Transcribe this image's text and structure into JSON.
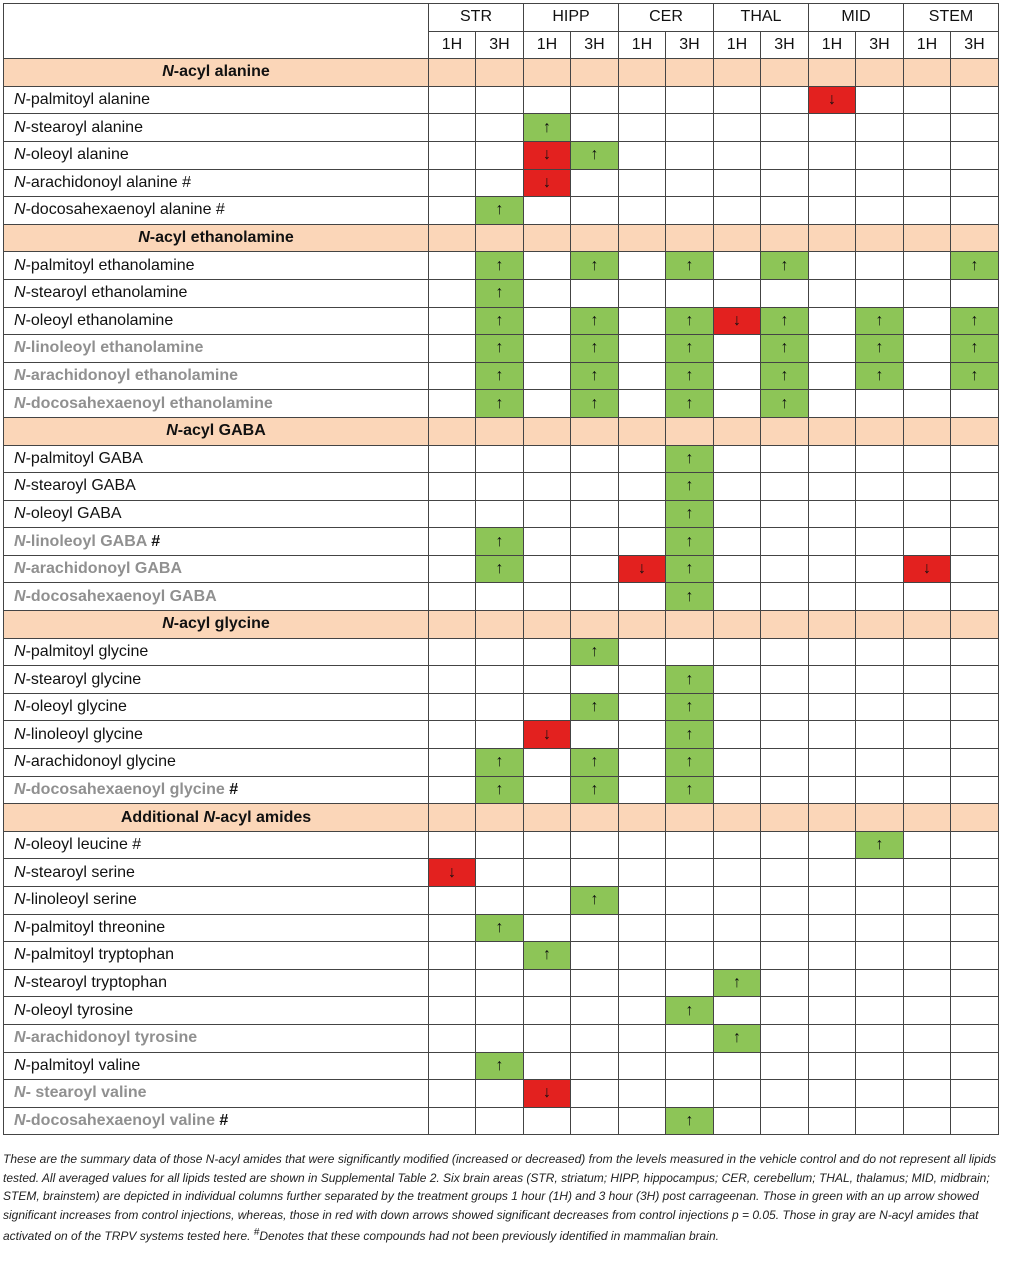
{
  "regions": [
    "STR",
    "HIPP",
    "CER",
    "THAL",
    "MID",
    "STEM"
  ],
  "timepoints": [
    "1H",
    "3H"
  ],
  "symbols": {
    "up": "↑",
    "down": "↓"
  },
  "colors": {
    "increase": "#8dc557",
    "decrease": "#e3211f",
    "group_header": "#fbd6b8",
    "gray_text": "#909090"
  },
  "groups": [
    {
      "title_italic": "N",
      "title_rest": "-acyl alanine",
      "rows": [
        {
          "name_italic": "N",
          "name_rest": "-palmitoyl alanine",
          "gray": false,
          "hash": "",
          "cells": [
            "",
            "",
            "",
            "",
            "",
            "",
            "",
            "",
            "down",
            "",
            "",
            ""
          ]
        },
        {
          "name_italic": "N",
          "name_rest": "-stearoyl alanine",
          "gray": false,
          "hash": "",
          "cells": [
            "",
            "",
            "up",
            "",
            "",
            "",
            "",
            "",
            "",
            "",
            "",
            ""
          ]
        },
        {
          "name_italic": "N",
          "name_rest": "-oleoyl alanine",
          "gray": false,
          "hash": "",
          "cells": [
            "",
            "",
            "down",
            "up",
            "",
            "",
            "",
            "",
            "",
            "",
            "",
            ""
          ]
        },
        {
          "name_italic": "N",
          "name_rest": "-arachidonoyl alanine #",
          "gray": false,
          "hash": "",
          "cells": [
            "",
            "",
            "down",
            "",
            "",
            "",
            "",
            "",
            "",
            "",
            "",
            ""
          ]
        },
        {
          "name_italic": "N",
          "name_rest": "-docosahexaenoyl alanine  #",
          "gray": false,
          "hash": "",
          "cells": [
            "",
            "up",
            "",
            "",
            "",
            "",
            "",
            "",
            "",
            "",
            "",
            ""
          ]
        }
      ]
    },
    {
      "title_italic": "N",
      "title_rest": "-acyl ethanolamine",
      "rows": [
        {
          "name_italic": "N",
          "name_rest": "-palmitoyl ethanolamine",
          "gray": false,
          "hash": "",
          "cells": [
            "",
            "up",
            "",
            "up",
            "",
            "up",
            "",
            "up",
            "",
            "",
            "",
            "up"
          ]
        },
        {
          "name_italic": "N",
          "name_rest": "-stearoyl ethanolamine",
          "gray": false,
          "hash": "",
          "cells": [
            "",
            "up",
            "",
            "",
            "",
            "",
            "",
            "",
            "",
            "",
            "",
            ""
          ]
        },
        {
          "name_italic": "N",
          "name_rest": "-oleoyl ethanolamine",
          "gray": false,
          "hash": "",
          "cells": [
            "",
            "up",
            "",
            "up",
            "",
            "up",
            "down",
            "up",
            "",
            "up",
            "",
            "up"
          ]
        },
        {
          "name_italic": "N",
          "name_rest": "-linoleoyl ethanolamine",
          "gray": true,
          "hash": "",
          "cells": [
            "",
            "up",
            "",
            "up",
            "",
            "up",
            "",
            "up",
            "",
            "up",
            "",
            "up"
          ]
        },
        {
          "name_italic": "N",
          "name_rest": "-arachidonoyl ethanolamine",
          "gray": true,
          "hash": "",
          "cells": [
            "",
            "up",
            "",
            "up",
            "",
            "up",
            "",
            "up",
            "",
            "up",
            "",
            "up"
          ]
        },
        {
          "name_italic": "N",
          "name_rest": "-docosahexaenoyl ethanolamine",
          "gray": true,
          "hash": "",
          "cells": [
            "",
            "up",
            "",
            "up",
            "",
            "up",
            "",
            "up",
            "",
            "",
            "",
            ""
          ]
        }
      ]
    },
    {
      "title_italic": "N",
      "title_rest": "-acyl GABA",
      "rows": [
        {
          "name_italic": "N",
          "name_rest": "-palmitoyl GABA",
          "gray": false,
          "hash": "",
          "cells": [
            "",
            "",
            "",
            "",
            "",
            "up",
            "",
            "",
            "",
            "",
            "",
            ""
          ]
        },
        {
          "name_italic": "N",
          "name_rest": "-stearoyl GABA",
          "gray": false,
          "hash": "",
          "cells": [
            "",
            "",
            "",
            "",
            "",
            "up",
            "",
            "",
            "",
            "",
            "",
            ""
          ]
        },
        {
          "name_italic": "N",
          "name_rest": "-oleoyl GABA",
          "gray": false,
          "hash": "",
          "cells": [
            "",
            "",
            "",
            "",
            "",
            "up",
            "",
            "",
            "",
            "",
            "",
            ""
          ]
        },
        {
          "name_italic": "N",
          "name_rest": "-linoleoyl GABA",
          "gray": true,
          "hash": " #",
          "cells": [
            "",
            "up",
            "",
            "",
            "",
            "up",
            "",
            "",
            "",
            "",
            "",
            ""
          ]
        },
        {
          "name_italic": "N",
          "name_rest": "-arachidonoyl GABA",
          "gray": true,
          "hash": "",
          "cells": [
            "",
            "up",
            "",
            "",
            "down",
            "up",
            "",
            "",
            "",
            "",
            "down",
            ""
          ]
        },
        {
          "name_italic": "N",
          "name_rest": "-docosahexaenoyl GABA",
          "gray": true,
          "hash": "",
          "cells": [
            "",
            "",
            "",
            "",
            "",
            "up",
            "",
            "",
            "",
            "",
            "",
            ""
          ]
        }
      ]
    },
    {
      "title_italic": "N",
      "title_rest": "-acyl glycine",
      "rows": [
        {
          "name_italic": "N",
          "name_rest": "-palmitoyl glycine",
          "gray": false,
          "hash": "",
          "cells": [
            "",
            "",
            "",
            "up",
            "",
            "",
            "",
            "",
            "",
            "",
            "",
            ""
          ]
        },
        {
          "name_italic": "N",
          "name_rest": "-stearoyl glycine",
          "gray": false,
          "hash": "",
          "cells": [
            "",
            "",
            "",
            "",
            "",
            "up",
            "",
            "",
            "",
            "",
            "",
            ""
          ]
        },
        {
          "name_italic": "N",
          "name_rest": "-oleoyl glycine",
          "gray": false,
          "hash": "",
          "cells": [
            "",
            "",
            "",
            "up",
            "",
            "up",
            "",
            "",
            "",
            "",
            "",
            ""
          ]
        },
        {
          "name_italic": "N",
          "name_rest": "-linoleoyl glycine",
          "gray": false,
          "hash": "",
          "cells": [
            "",
            "",
            "down",
            "",
            "",
            "up",
            "",
            "",
            "",
            "",
            "",
            ""
          ]
        },
        {
          "name_italic": "N",
          "name_rest": "-arachidonoyl glycine",
          "gray": false,
          "hash": "",
          "cells": [
            "",
            "up",
            "",
            "up",
            "",
            "up",
            "",
            "",
            "",
            "",
            "",
            ""
          ]
        },
        {
          "name_italic": "N",
          "name_rest": "-docosahexaenoyl glycine",
          "gray": true,
          "hash": " #",
          "cells": [
            "",
            "up",
            "",
            "up",
            "",
            "up",
            "",
            "",
            "",
            "",
            "",
            ""
          ]
        }
      ]
    },
    {
      "title_prefix": "Additional ",
      "title_italic": "N",
      "title_rest": "-acyl amides",
      "rows": [
        {
          "name_italic": "N",
          "name_rest": "-oleoyl leucine #",
          "gray": false,
          "hash": "",
          "cells": [
            "",
            "",
            "",
            "",
            "",
            "",
            "",
            "",
            "",
            "up",
            "",
            ""
          ]
        },
        {
          "name_italic": "N",
          "name_rest": "-stearoyl serine",
          "gray": false,
          "hash": "",
          "cells": [
            "down",
            "",
            "",
            "",
            "",
            "",
            "",
            "",
            "",
            "",
            "",
            ""
          ]
        },
        {
          "name_italic": "N",
          "name_rest": "-linoleoyl serine",
          "gray": false,
          "hash": "",
          "cells": [
            "",
            "",
            "",
            "up",
            "",
            "",
            "",
            "",
            "",
            "",
            "",
            ""
          ]
        },
        {
          "name_italic": "N",
          "name_rest": "-palmitoyl threonine",
          "gray": false,
          "hash": "",
          "cells": [
            "",
            "up",
            "",
            "",
            "",
            "",
            "",
            "",
            "",
            "",
            "",
            ""
          ]
        },
        {
          "name_italic": "N",
          "name_rest": "-palmitoyl tryptophan",
          "gray": false,
          "hash": "",
          "cells": [
            "",
            "",
            "up",
            "",
            "",
            "",
            "",
            "",
            "",
            "",
            "",
            ""
          ]
        },
        {
          "name_italic": "N",
          "name_rest": "-stearoyl tryptophan",
          "gray": false,
          "hash": "",
          "cells": [
            "",
            "",
            "",
            "",
            "",
            "",
            "up",
            "",
            "",
            "",
            "",
            ""
          ]
        },
        {
          "name_italic": "N",
          "name_rest": "-oleoyl tyrosine",
          "gray": false,
          "hash": "",
          "cells": [
            "",
            "",
            "",
            "",
            "",
            "up",
            "",
            "",
            "",
            "",
            "",
            ""
          ]
        },
        {
          "name_italic": "N",
          "name_rest": "-arachidonoyl tyrosine",
          "gray": true,
          "hash": "",
          "cells": [
            "",
            "",
            "",
            "",
            "",
            "",
            "up",
            "",
            "",
            "",
            "",
            ""
          ]
        },
        {
          "name_italic": "N",
          "name_rest": "-palmitoyl valine",
          "gray": false,
          "hash": "",
          "cells": [
            "",
            "up",
            "",
            "",
            "",
            "",
            "",
            "",
            "",
            "",
            "",
            ""
          ]
        },
        {
          "name_italic": "N",
          "name_rest": "- stearoyl valine",
          "gray": true,
          "hash": "",
          "cells": [
            "",
            "",
            "down",
            "",
            "",
            "",
            "",
            "",
            "",
            "",
            "",
            ""
          ]
        },
        {
          "name_italic": "N",
          "name_rest": "-docosahexaenoyl valine",
          "gray": true,
          "hash": " #",
          "cells": [
            "",
            "",
            "",
            "",
            "",
            "up",
            "",
            "",
            "",
            "",
            "",
            ""
          ]
        }
      ]
    }
  ],
  "footnote": "These are the summary data of those N-acyl amides that were significantly modified (increased or decreased) from the levels measured in the vehicle control and do not represent all lipids tested. All averaged values for all lipids tested are shown in Supplemental Table 2. Six brain areas (STR, striatum; HIPP, hippocampus; CER, cerebellum; THAL, thalamus; MID, midbrain; STEM, brainstem) are depicted in individual columns further separated by the treatment groups 1 hour (1H) and 3 hour (3H) post carrageenan. Those in green with an up arrow showed significant increases from control injections, whereas, those in red with down arrows showed significant decreases from control injections p = 0.05. Those in gray are N-acyl amides that activated on of the TRPV systems tested here.",
  "footnote_mark": "#",
  "footnote_tail": "Denotes that these compounds had not been previously identified in mammalian brain."
}
